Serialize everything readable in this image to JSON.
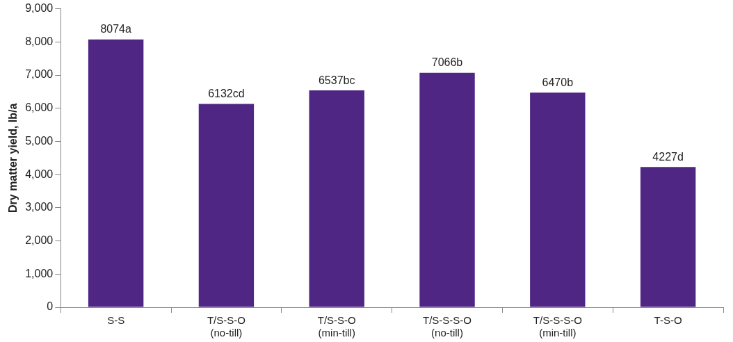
{
  "chart_data": {
    "type": "bar",
    "ylabel": "Dry matter yield, lb/a",
    "categories": [
      "S-S",
      "T/S-S-O\n(no-till)",
      "T/S-S-O\n(min-till)",
      "T/S-S-S-O\n(no-till)",
      "T/S-S-S-O\n(min-till)",
      "T-S-O"
    ],
    "values": [
      8074,
      6132,
      6537,
      7066,
      6470,
      4227
    ],
    "value_labels": [
      "8074a",
      "6132cd",
      "6537bc",
      "7066b",
      "6470b",
      "4227d"
    ],
    "color": "#4f2683",
    "ylim": [
      0,
      9000
    ],
    "yticks": [
      0,
      {
        "value": 1000,
        "label": "1,000"
      },
      {
        "value": 2000,
        "label": "2,000"
      },
      {
        "value": 3000,
        "label": "3,000"
      },
      {
        "value": 4000,
        "label": "4,000"
      },
      {
        "value": 5000,
        "label": "5,000"
      },
      {
        "value": 6000,
        "label": "6,000"
      },
      {
        "value": 7000,
        "label": "7,000"
      },
      {
        "value": 8000,
        "label": "8,000"
      },
      {
        "value": 9000,
        "label": "9,000"
      }
    ],
    "grid": false,
    "legend": false
  }
}
